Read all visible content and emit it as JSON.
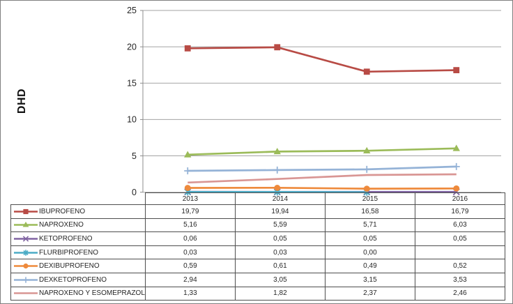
{
  "chart_data": {
    "type": "line",
    "title": "",
    "ylabel": "DHD",
    "xlabel": "",
    "categories": [
      "2013",
      "2014",
      "2015",
      "2016"
    ],
    "ylim": [
      0,
      25
    ],
    "yticks": [
      "0",
      "5",
      "10",
      "15",
      "20",
      "25"
    ],
    "grid": true,
    "legend_position": "table-bottom",
    "colors": {
      "grid": "#a3a3a3",
      "axis": "#8c8c8c",
      "table_border": "#4d4d4d",
      "text": "#262626"
    },
    "series": [
      {
        "name": "IBUPROFENO",
        "color": "#b84b45",
        "marker": "square",
        "values": [
          19.79,
          19.94,
          16.58,
          16.79
        ],
        "display": [
          "19,79",
          "19,94",
          "16,58",
          "16,79"
        ]
      },
      {
        "name": "NAPROXENO",
        "color": "#9bbb59",
        "marker": "triangle",
        "values": [
          5.16,
          5.59,
          5.71,
          6.03
        ],
        "display": [
          "5,16",
          "5,59",
          "5,71",
          "6,03"
        ]
      },
      {
        "name": "KETOPROFENO",
        "color": "#8064a2",
        "marker": "x",
        "values": [
          0.06,
          0.05,
          0.05,
          0.05
        ],
        "display": [
          "0,06",
          "0,05",
          "0,05",
          "0,05"
        ]
      },
      {
        "name": "FLURBIPROFENO",
        "color": "#4bacc6",
        "marker": "asterisk",
        "values": [
          0.03,
          0.03,
          0.0,
          null
        ],
        "display": [
          "0,03",
          "0,03",
          "0,00",
          ""
        ]
      },
      {
        "name": "DEXIBUPROFENO",
        "color": "#ee8a3c",
        "marker": "circle",
        "values": [
          0.59,
          0.61,
          0.49,
          0.52
        ],
        "display": [
          "0,59",
          "0,61",
          "0,49",
          "0,52"
        ]
      },
      {
        "name": "DEXKETOPROFENO",
        "color": "#95b3d7",
        "marker": "plus",
        "values": [
          2.94,
          3.05,
          3.15,
          3.53
        ],
        "display": [
          "2,94",
          "3,05",
          "3,15",
          "3,53"
        ]
      },
      {
        "name": "NAPROXENO Y ESOMEPRAZOL",
        "color": "#d99694",
        "marker": "none",
        "values": [
          1.33,
          1.82,
          2.37,
          2.46
        ],
        "display": [
          "1,33",
          "1,82",
          "2,37",
          "2,46"
        ]
      }
    ]
  }
}
